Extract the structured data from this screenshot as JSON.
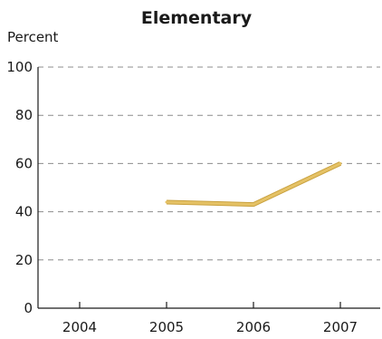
{
  "chart_data": {
    "type": "line",
    "title": "Elementary",
    "ylabel": "Percent",
    "xlabel": "",
    "categories": [
      "2004",
      "2005",
      "2006",
      "2007"
    ],
    "yticks": [
      0,
      20,
      40,
      60,
      80,
      100
    ],
    "ylim": [
      0,
      100
    ],
    "grid": true,
    "series": [
      {
        "values": [
          null,
          44,
          43,
          60
        ],
        "color": "#e5c266"
      }
    ]
  }
}
